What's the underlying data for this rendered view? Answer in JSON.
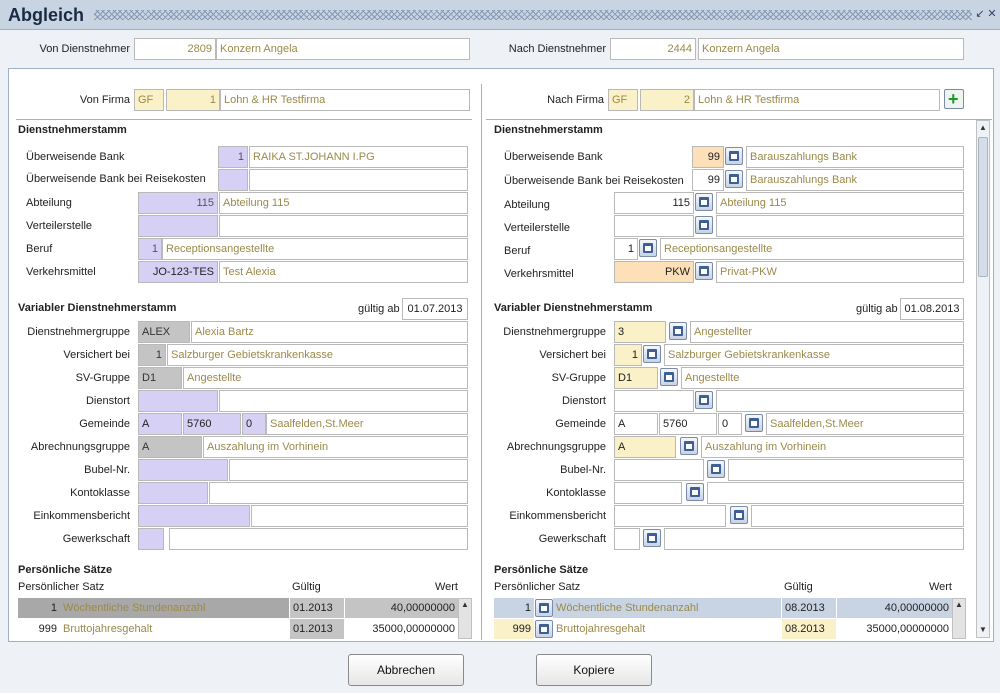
{
  "window": {
    "title": "Abgleich"
  },
  "header": {
    "von_label": "Von Dienstnehmer",
    "von_nr": "2809",
    "von_name": "Konzern Angela",
    "nach_label": "Nach Dienstnehmer",
    "nach_nr": "2444",
    "nach_name": "Konzern Angela"
  },
  "left": {
    "firma_label": "Von Firma",
    "firma_code": "GF",
    "firma_nr": "1",
    "firma_name": "Lohn & HR Testfirma",
    "dn_title": "Dienstnehmerstamm",
    "bank_label": "Überweisende Bank",
    "bank_nr": "1",
    "bank_name": "RAIKA ST.JOHANN I.PG",
    "bank_rk_label": "Überweisende Bank bei Reisekosten",
    "abt_label": "Abteilung",
    "abt_nr": "115",
    "abt_name": "Abteilung 115",
    "vert_label": "Verteilerstelle",
    "beruf_label": "Beruf",
    "beruf_nr": "1",
    "beruf_name": "Receptionsangestellte",
    "vm_label": "Verkehrsmittel",
    "vm_code": "JO-123-TES",
    "vm_name": "Test Alexia",
    "var_title": "Variabler Dienstnehmerstamm",
    "gueltig_label": "gültig ab",
    "gueltig": "01.07.2013",
    "gruppe_label": "Dienstnehmergruppe",
    "gruppe_code": "ALEX",
    "gruppe_name": "Alexia Bartz",
    "vers_label": "Versichert bei",
    "vers_nr": "1",
    "vers_name": "Salzburger Gebietskrankenkasse",
    "sv_label": "SV-Gruppe",
    "sv_code": "D1",
    "sv_name": "Angestellte",
    "dienst_label": "Dienstort",
    "gem_label": "Gemeinde",
    "gem_a": "A",
    "gem_plz": "5760",
    "gem_nr": "0",
    "gem_name": "Saalfelden,St.Meer",
    "abr_label": "Abrechnungsgruppe",
    "abr_code": "A",
    "abr_name": "Auszahlung im Vorhinein",
    "bubel_label": "Bubel-Nr.",
    "konto_label": "Kontoklasse",
    "eink_label": "Einkommensbericht",
    "gew_label": "Gewerkschaft",
    "ps_title": "Persönliche Sätze",
    "col_satz": "Persönlicher Satz",
    "col_gueltig": "Gültig",
    "col_wert": "Wert",
    "rows": [
      {
        "nr": "1",
        "name": "Wöchentliche Stundenanzahl",
        "gueltig": "01.2013",
        "wert": "40,00000000"
      },
      {
        "nr": "999",
        "name": "Bruttojahresgehalt",
        "gueltig": "01.2013",
        "wert": "35000,00000000"
      }
    ]
  },
  "right": {
    "firma_label": "Nach Firma",
    "firma_code": "GF",
    "firma_nr": "2",
    "firma_name": "Lohn & HR Testfirma",
    "dn_title": "Dienstnehmerstamm",
    "bank_label": "Überweisende Bank",
    "bank_nr": "99",
    "bank_name": "Barauszahlungs Bank",
    "bank_rk_label": "Überweisende Bank bei Reisekosten",
    "bank_rk_nr": "99",
    "bank_rk_name": "Barauszahlungs Bank",
    "abt_label": "Abteilung",
    "abt_nr": "115",
    "abt_name": "Abteilung 115",
    "vert_label": "Verteilerstelle",
    "beruf_label": "Beruf",
    "beruf_nr": "1",
    "beruf_name": "Receptionsangestellte",
    "vm_label": "Verkehrsmittel",
    "vm_code": "PKW",
    "vm_name": "Privat-PKW",
    "var_title": "Variabler Dienstnehmerstamm",
    "gueltig_label": "gültig ab",
    "gueltig": "01.08.2013",
    "gruppe_label": "Dienstnehmergruppe",
    "gruppe_code": "3",
    "gruppe_name": "Angestellter",
    "vers_label": "Versichert bei",
    "vers_nr": "1",
    "vers_name": "Salzburger Gebietskrankenkasse",
    "sv_label": "SV-Gruppe",
    "sv_code": "D1",
    "sv_name": "Angestellte",
    "dienst_label": "Dienstort",
    "gem_label": "Gemeinde",
    "gem_a": "A",
    "gem_plz": "5760",
    "gem_nr": "0",
    "gem_name": "Saalfelden,St.Meer",
    "abr_label": "Abrechnungsgruppe",
    "abr_code": "A",
    "abr_name": "Auszahlung im Vorhinein",
    "bubel_label": "Bubel-Nr.",
    "konto_label": "Kontoklasse",
    "eink_label": "Einkommensbericht",
    "gew_label": "Gewerkschaft",
    "ps_title": "Persönliche Sätze",
    "col_satz": "Persönlicher Satz",
    "col_gueltig": "Gültig",
    "col_wert": "Wert",
    "rows": [
      {
        "nr": "1",
        "name": "Wöchentliche Stundenanzahl",
        "gueltig": "08.2013",
        "wert": "40,00000000"
      },
      {
        "nr": "999",
        "name": "Bruttojahresgehalt",
        "gueltig": "08.2013",
        "wert": "35000,00000000"
      }
    ]
  },
  "buttons": {
    "cancel": "Abbrechen",
    "copy": "Kopiere"
  },
  "icons": {
    "lookup": "calendar-lookup-icon",
    "add": "plus-icon"
  }
}
